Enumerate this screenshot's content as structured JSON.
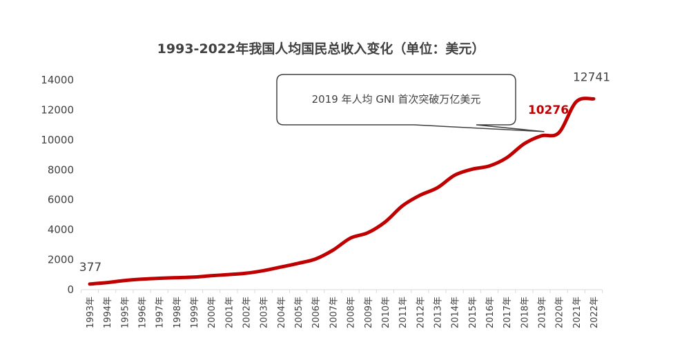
{
  "chart_data": {
    "type": "line",
    "title": "1993-2022年我国人均国民总收入变化（单位：美元）",
    "xlabel": "",
    "ylabel": "",
    "categories": [
      "1993年",
      "1994年",
      "1995年",
      "1996年",
      "1997年",
      "1998年",
      "1999年",
      "2000年",
      "2001年",
      "2002年",
      "2003年",
      "2004年",
      "2005年",
      "2006年",
      "2007年",
      "2008年",
      "2009年",
      "2010年",
      "2011年",
      "2012年",
      "2013年",
      "2014年",
      "2015年",
      "2016年",
      "2017年",
      "2018年",
      "2019年",
      "2020年",
      "2021年",
      "2022年"
    ],
    "series": [
      {
        "values": [
          377,
          470,
          610,
          700,
          760,
          800,
          840,
          930,
          1010,
          1100,
          1270,
          1510,
          1760,
          2050,
          2640,
          3440,
          3800,
          4520,
          5600,
          6300,
          6800,
          7640,
          8040,
          8260,
          8810,
          9740,
          10276,
          10480,
          12550,
          12741
        ]
      }
    ],
    "ylim": [
      0,
      14000
    ],
    "yticks": [
      0,
      2000,
      4000,
      6000,
      8000,
      10000,
      12000,
      14000
    ],
    "grid": false,
    "line_color": "#c00000",
    "data_labels": [
      {
        "category": "1993年",
        "text": "377",
        "color": "#404040",
        "bold": false
      },
      {
        "category": "2019年",
        "text": "10276",
        "color": "#c00000",
        "bold": true
      },
      {
        "category": "2022年",
        "text": "12741",
        "color": "#404040",
        "bold": false
      }
    ],
    "callout": {
      "text": "2019 年人均 GNI 首次突破万亿美元",
      "target_category": "2019年"
    }
  }
}
